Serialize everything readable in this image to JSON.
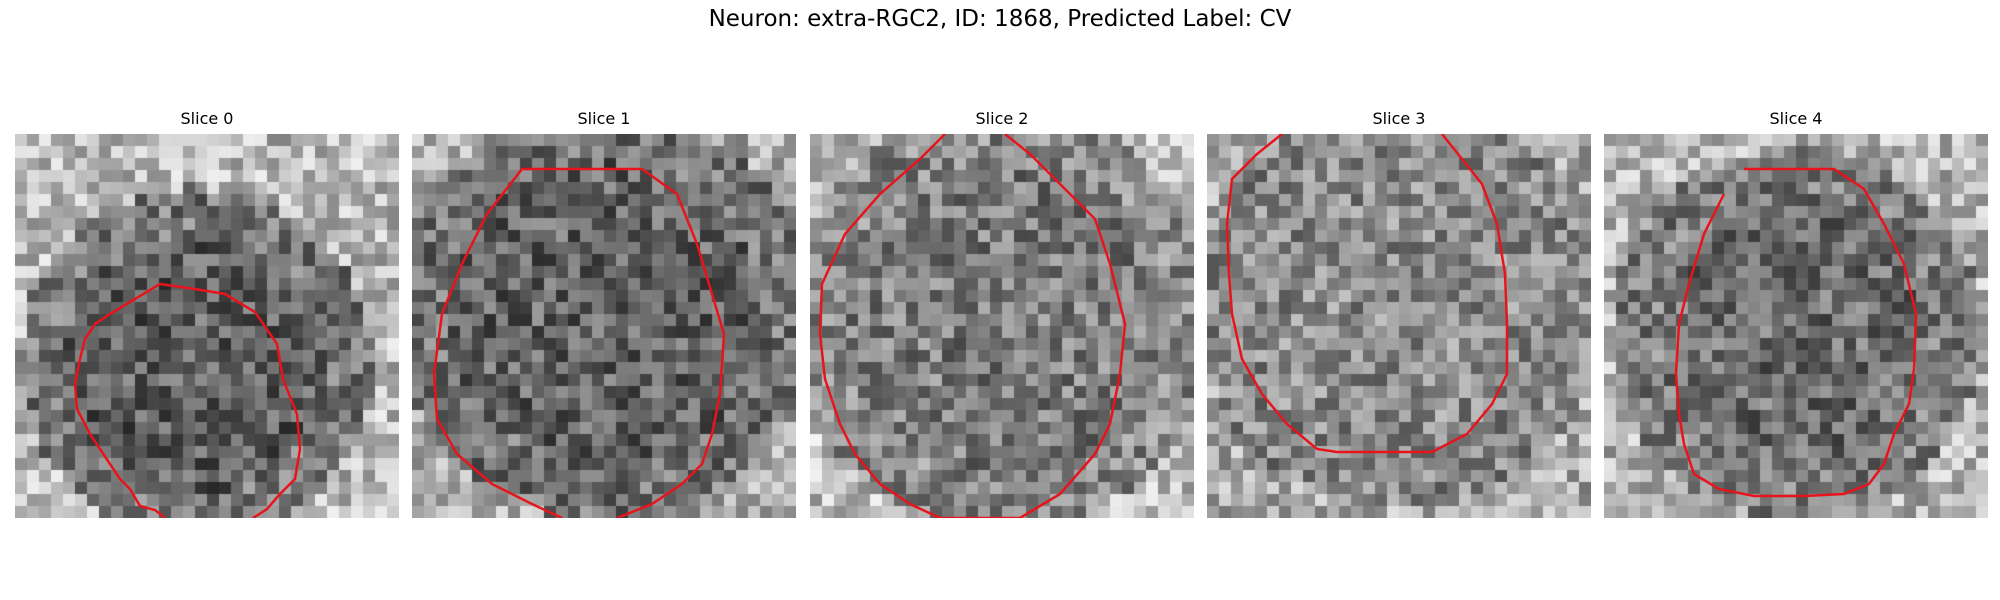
{
  "figure": {
    "title": "Neuron: extra-RGC2, ID: 1868, Predicted Label: CV",
    "contour_color": "#e8141c",
    "colormap": "gray"
  },
  "panels": [
    {
      "title": "Slice 0"
    },
    {
      "title": "Slice 1"
    },
    {
      "title": "Slice 2"
    },
    {
      "title": "Slice 3"
    },
    {
      "title": "Slice 4"
    }
  ]
}
